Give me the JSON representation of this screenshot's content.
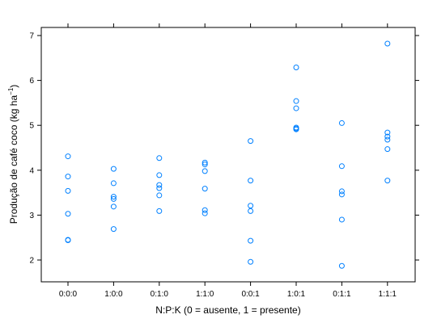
{
  "chart_data": {
    "type": "scatter",
    "xlabel": "N:P:K (0 = ausente, 1 = presente)",
    "ylabel_main": "Produção de café coco (kg ha",
    "ylabel_sup": "−1",
    "ylabel_close": ")",
    "categories": [
      "0:0:0",
      "1:0:0",
      "0:1:0",
      "1:1:0",
      "0:0:1",
      "1:0:1",
      "0:1:1",
      "1:1:1"
    ],
    "yticks": [
      2,
      3,
      4,
      5,
      6,
      7
    ],
    "ylim": [
      1.5,
      7.2
    ],
    "grid": false,
    "point_color": "#0080ff",
    "series": [
      {
        "values": [
          [
            4.31,
            3.86,
            3.54,
            3.03,
            2.45,
            2.44
          ],
          [
            4.03,
            3.71,
            3.41,
            3.36,
            3.19,
            2.69
          ],
          [
            4.27,
            3.89,
            3.67,
            3.6,
            3.44,
            3.09
          ],
          [
            4.17,
            4.13,
            3.98,
            3.59,
            3.11,
            3.04
          ],
          [
            4.65,
            3.77,
            3.21,
            3.09,
            2.43,
            1.96
          ],
          [
            6.29,
            5.54,
            5.38,
            4.95,
            4.93,
            4.91
          ],
          [
            5.05,
            4.09,
            3.53,
            3.46,
            2.9,
            1.87
          ],
          [
            6.82,
            4.84,
            4.75,
            4.68,
            4.47,
            3.77
          ]
        ]
      }
    ]
  }
}
